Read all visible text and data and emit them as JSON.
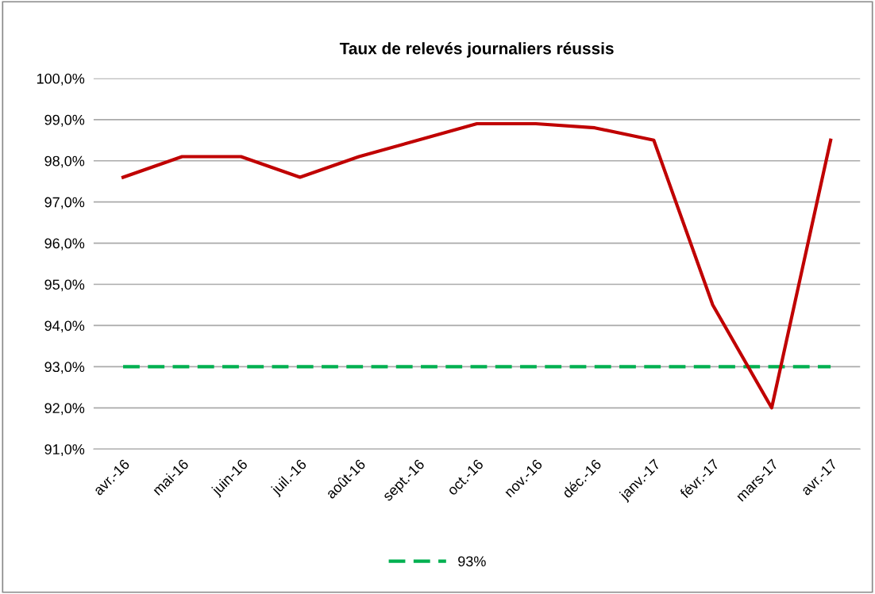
{
  "chart_data": {
    "type": "line",
    "title": "Taux de relevés journaliers réussis",
    "categories": [
      "avr.-16",
      "mai-16",
      "juin-16",
      "juil.-16",
      "août-16",
      "sept.-16",
      "oct.-16",
      "nov.-16",
      "déc.-16",
      "janv.-17",
      "févr.-17",
      "mars-17",
      "avr.-17"
    ],
    "series": [
      {
        "color": "#c00000",
        "values": [
          97.6,
          98.1,
          98.1,
          97.6,
          98.1,
          98.5,
          98.9,
          98.9,
          98.8,
          98.5,
          94.5,
          92.0,
          98.5
        ]
      }
    ],
    "ylim": [
      91,
      100
    ],
    "yticks": [
      {
        "value": 91,
        "label": "91,0%"
      },
      {
        "value": 92,
        "label": "92,0%"
      },
      {
        "value": 93,
        "label": "93,0%"
      },
      {
        "value": 94,
        "label": "94,0%"
      },
      {
        "value": 95,
        "label": "95,0%"
      },
      {
        "value": 96,
        "label": "96,0%"
      },
      {
        "value": 97,
        "label": "97,0%"
      },
      {
        "value": 98,
        "label": "98,0%"
      },
      {
        "value": 99,
        "label": "99,0%"
      },
      {
        "value": 100,
        "label": "100,0%"
      }
    ],
    "ref_lines": [
      {
        "axis": "y",
        "value": 93,
        "label": "93%",
        "color": "#00b050",
        "line_style": "dashed"
      }
    ],
    "grid": "y",
    "legend": "bottom",
    "marker": "none",
    "line_style": "solid"
  }
}
